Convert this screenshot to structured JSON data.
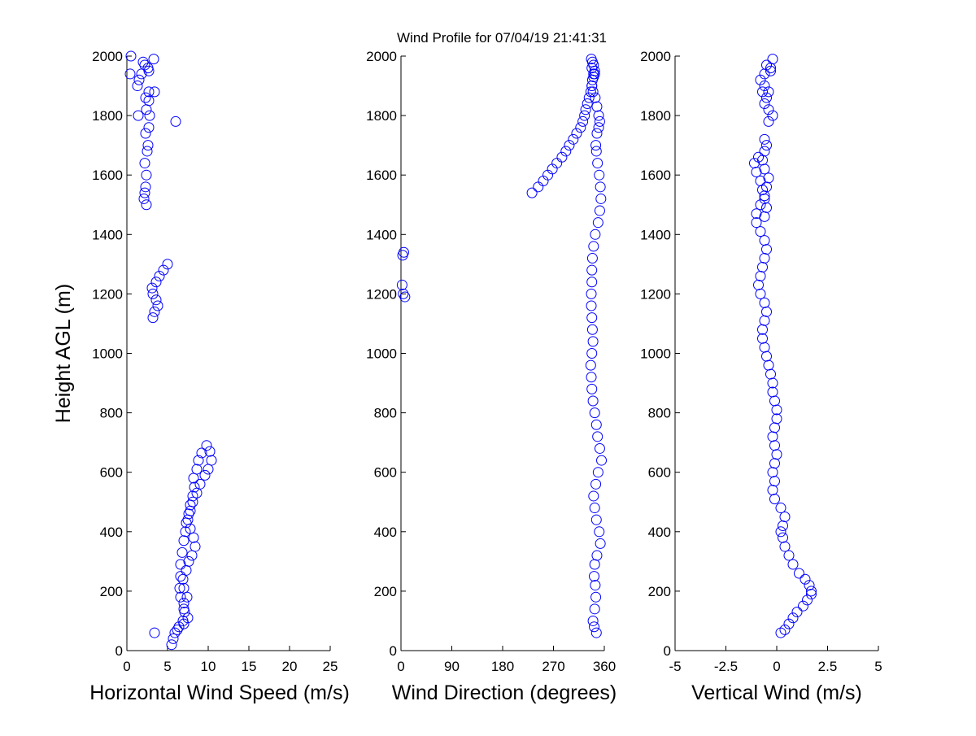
{
  "figure": {
    "title": "Wind Profile for  07/04/19 21:41:31",
    "marker_color": "#0000ff"
  },
  "chart_data": [
    {
      "type": "scatter",
      "xlabel": "Horizontal Wind Speed (m/s)",
      "ylabel": "Height AGL (m)",
      "xlim": [
        0,
        25
      ],
      "ylim": [
        0,
        2000
      ],
      "xticks": [
        "0",
        "5",
        "10",
        "15",
        "20",
        "25"
      ],
      "yticks": [
        "0",
        "200",
        "400",
        "600",
        "800",
        "1000",
        "1200",
        "1400",
        "1600",
        "1800",
        "2000"
      ],
      "x": [
        3.4,
        6.2,
        7.0,
        7.5,
        7.0,
        7.4,
        7.0,
        6.6,
        6.6,
        6.8,
        7.0,
        7.2,
        7.3,
        7.6,
        7.8,
        8.1,
        8.3,
        8.2,
        8.6,
        8.8,
        9.2,
        9.8,
        10.2,
        10.4,
        10.0,
        9.6,
        9.0,
        8.6,
        8.1,
        7.8,
        7.5,
        7.8,
        8.2,
        8.4,
        8.0,
        7.6,
        7.3,
        6.9,
        6.5,
        6.6,
        7.0,
        7.1,
        6.9,
        6.4,
        5.9,
        5.7,
        5.5,
        5.0,
        4.5,
        4.0,
        3.6,
        3.1,
        3.2,
        3.6,
        3.8,
        3.4,
        3.2,
        2.4,
        2.1,
        2.2,
        2.3,
        2.4,
        2.2,
        2.5,
        2.6,
        2.3,
        2.7,
        2.8,
        2.4,
        2.7,
        6.0,
        2.7,
        1.3,
        1.5,
        1.8,
        2.6,
        3.3,
        2.0,
        1.4,
        2.3,
        2.7,
        0.5,
        2.2,
        3.4,
        0.4
      ],
      "y": [
        60,
        70,
        90,
        110,
        140,
        180,
        210,
        250,
        290,
        330,
        370,
        400,
        430,
        460,
        490,
        520,
        550,
        580,
        610,
        640,
        665,
        690,
        670,
        640,
        610,
        590,
        560,
        530,
        500,
        470,
        440,
        410,
        380,
        350,
        320,
        300,
        270,
        240,
        210,
        180,
        160,
        130,
        100,
        80,
        60,
        40,
        20,
        1300,
        1280,
        1260,
        1240,
        1220,
        1200,
        1180,
        1160,
        1140,
        1120,
        1500,
        1520,
        1540,
        1560,
        1600,
        1640,
        1680,
        1700,
        1740,
        1760,
        1800,
        1820,
        1850,
        1780,
        1880,
        1900,
        1920,
        1940,
        1960,
        1990,
        1980,
        1800,
        1860,
        1950,
        2000,
        1970,
        1880,
        1940
      ]
    },
    {
      "type": "scatter",
      "xlabel": "Wind Direction (degrees)",
      "ylabel": "",
      "xlim": [
        0,
        360
      ],
      "ylim": [
        0,
        2000
      ],
      "xticks": [
        "0",
        "90",
        "180",
        "270",
        "360"
      ],
      "yticks": [
        "0",
        "200",
        "400",
        "600",
        "800",
        "1000",
        "1200",
        "1400",
        "1600",
        "1800",
        "2000"
      ],
      "x": [
        346,
        342,
        340,
        343,
        345,
        344,
        342,
        343,
        347,
        353,
        351,
        346,
        343,
        341,
        345,
        349,
        355,
        352,
        348,
        346,
        343,
        340,
        338,
        337,
        336,
        338,
        340,
        339,
        338,
        337,
        337,
        338,
        338,
        339,
        341,
        344,
        349,
        352,
        354,
        353,
        351,
        348,
        346,
        345,
        347,
        350,
        352,
        350,
        347,
        344,
        340,
        338,
        339,
        341,
        338,
        337,
        339,
        341,
        343,
        343,
        341,
        338,
        336,
        333,
        330,
        327,
        325,
        322,
        318,
        311,
        305,
        298,
        292,
        285,
        276,
        268,
        260,
        252,
        243,
        232,
        3,
        5,
        2,
        4,
        7
      ],
      "y": [
        60,
        80,
        100,
        140,
        180,
        220,
        250,
        290,
        320,
        360,
        400,
        440,
        480,
        520,
        560,
        600,
        640,
        680,
        720,
        760,
        800,
        840,
        880,
        920,
        960,
        1000,
        1040,
        1080,
        1120,
        1160,
        1200,
        1240,
        1280,
        1320,
        1360,
        1400,
        1440,
        1480,
        1520,
        1560,
        1600,
        1640,
        1680,
        1700,
        1740,
        1760,
        1780,
        1800,
        1830,
        1860,
        1880,
        1900,
        1920,
        1940,
        1960,
        1990,
        1980,
        1970,
        1950,
        1940,
        1930,
        1900,
        1880,
        1860,
        1840,
        1820,
        1800,
        1780,
        1760,
        1740,
        1720,
        1700,
        1680,
        1660,
        1640,
        1620,
        1600,
        1580,
        1560,
        1540,
        1330,
        1340,
        1230,
        1200,
        1190
      ]
    },
    {
      "type": "scatter",
      "xlabel": "Vertical Wind (m/s)",
      "ylabel": "",
      "xlim": [
        -5,
        5
      ],
      "xticks": [
        "-5",
        "-2.5",
        "0",
        "2.5",
        "5"
      ],
      "ylim": [
        0,
        2000
      ],
      "yticks": [
        "0",
        "200",
        "400",
        "600",
        "800",
        "1000",
        "1200",
        "1400",
        "1600",
        "1800",
        "2000"
      ],
      "x": [
        0.2,
        0.4,
        0.6,
        0.8,
        1.0,
        1.3,
        1.5,
        1.7,
        1.7,
        1.6,
        1.4,
        1.1,
        0.8,
        0.6,
        0.4,
        0.3,
        0.2,
        0.3,
        0.4,
        0.2,
        -0.1,
        -0.2,
        -0.1,
        -0.2,
        -0.1,
        0.0,
        -0.1,
        -0.2,
        -0.1,
        0.0,
        0.0,
        -0.1,
        -0.2,
        -0.2,
        -0.3,
        -0.4,
        -0.5,
        -0.6,
        -0.7,
        -0.7,
        -0.6,
        -0.5,
        -0.6,
        -0.8,
        -0.9,
        -0.8,
        -0.7,
        -0.6,
        -0.5,
        -0.6,
        -0.8,
        -1.0,
        -1.0,
        -0.8,
        -0.6,
        -0.5,
        -0.4,
        -0.6,
        -0.7,
        -0.6,
        -0.5,
        -0.6,
        -0.9,
        -1.1,
        -1.0,
        -0.8,
        -0.7,
        -0.6,
        -0.5,
        -0.6,
        -0.4,
        -0.2,
        -0.4,
        -0.6,
        -0.5,
        -0.4,
        -0.6,
        -0.8,
        -0.6,
        -0.3,
        -0.5,
        -0.3,
        -0.2,
        -0.7
      ],
      "y": [
        60,
        70,
        90,
        110,
        130,
        150,
        170,
        190,
        200,
        220,
        240,
        260,
        290,
        320,
        350,
        380,
        400,
        420,
        450,
        480,
        510,
        540,
        570,
        600,
        630,
        660,
        690,
        720,
        750,
        780,
        810,
        840,
        870,
        900,
        930,
        960,
        990,
        1020,
        1050,
        1080,
        1110,
        1140,
        1170,
        1200,
        1230,
        1260,
        1290,
        1320,
        1350,
        1380,
        1410,
        1440,
        1470,
        1500,
        1530,
        1560,
        1590,
        1620,
        1650,
        1680,
        1700,
        1720,
        1660,
        1640,
        1610,
        1580,
        1550,
        1520,
        1490,
        1460,
        1780,
        1800,
        1820,
        1840,
        1860,
        1880,
        1900,
        1920,
        1940,
        1960,
        1970,
        1950,
        1990,
        1880
      ]
    }
  ]
}
